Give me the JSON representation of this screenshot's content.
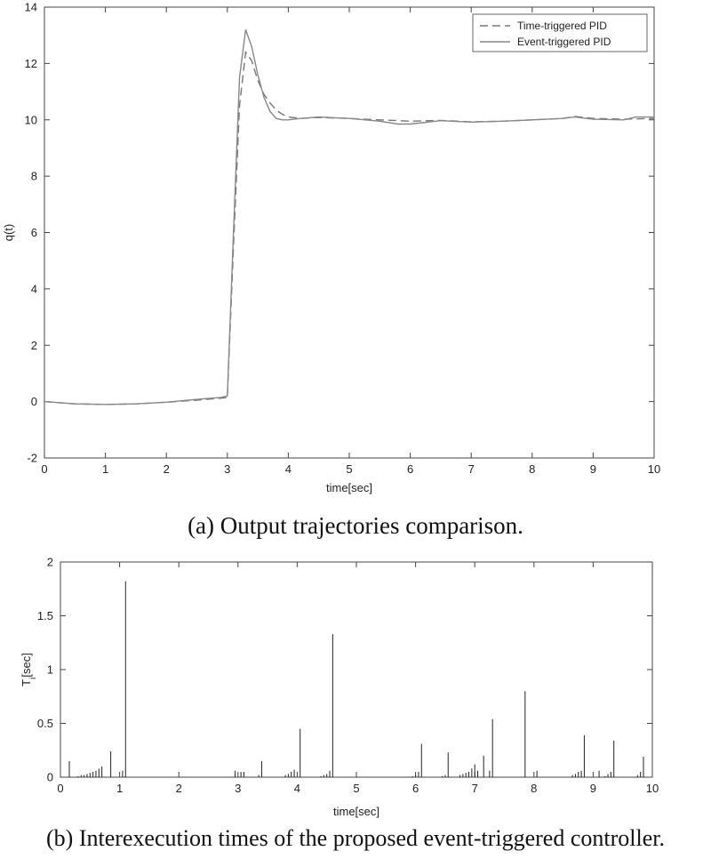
{
  "captions": {
    "a": "(a)  Output trajectories comparison.",
    "b": "(b)  Interexecution times of the proposed event-triggered controller."
  },
  "chart_data": [
    {
      "type": "line",
      "xlabel": "time[sec]",
      "ylabel": "q(t)",
      "xlim": [
        0,
        10
      ],
      "ylim": [
        -2,
        14
      ],
      "xticks": [
        0,
        1,
        2,
        3,
        4,
        5,
        6,
        7,
        8,
        9,
        10
      ],
      "yticks": [
        -2,
        0,
        2,
        4,
        6,
        8,
        10,
        12,
        14
      ],
      "grid": false,
      "legend_position": "top-right",
      "series": [
        {
          "name": "Time-triggered PID",
          "style": "dashed",
          "color": "#777777",
          "x": [
            0,
            0.5,
            1,
            1.5,
            2,
            2.5,
            2.9,
            3.0,
            3.1,
            3.2,
            3.3,
            3.4,
            3.5,
            3.6,
            3.7,
            3.8,
            3.9,
            4.0,
            4.2,
            4.5,
            5.0,
            5.5,
            6.0,
            6.5,
            7.0,
            7.5,
            8.0,
            8.5,
            8.7,
            9.0,
            9.5,
            10
          ],
          "y": [
            0,
            -0.08,
            -0.1,
            -0.08,
            -0.02,
            0.05,
            0.12,
            0.15,
            5.5,
            10.5,
            12.4,
            12.1,
            11.4,
            10.9,
            10.6,
            10.35,
            10.2,
            10.1,
            10.05,
            10.08,
            10.05,
            10.0,
            9.95,
            9.98,
            9.93,
            9.95,
            10.0,
            10.05,
            10.12,
            10.05,
            10.02,
            10.05
          ]
        },
        {
          "name": "Event-triggered PID",
          "style": "solid",
          "color": "#888888",
          "x": [
            0,
            0.5,
            1,
            1.5,
            2,
            2.5,
            2.9,
            3.0,
            3.1,
            3.2,
            3.3,
            3.4,
            3.5,
            3.6,
            3.7,
            3.8,
            3.9,
            4.0,
            4.2,
            4.5,
            5.0,
            5.5,
            5.8,
            6.0,
            6.5,
            7.0,
            7.5,
            8.0,
            8.5,
            8.7,
            9.0,
            9.5,
            9.7,
            10
          ],
          "y": [
            0,
            -0.08,
            -0.1,
            -0.08,
            -0.02,
            0.08,
            0.15,
            0.2,
            6.0,
            11.5,
            13.2,
            12.6,
            11.6,
            10.8,
            10.3,
            10.05,
            10.0,
            10.0,
            10.05,
            10.1,
            10.05,
            9.95,
            9.85,
            9.85,
            9.97,
            9.92,
            9.95,
            10.0,
            10.05,
            10.1,
            10.02,
            10.0,
            10.1,
            10.1
          ]
        }
      ]
    },
    {
      "type": "bar",
      "style": "stem",
      "xlabel": "time[sec]",
      "ylabel": "T_i[sec]",
      "xlim": [
        0,
        10
      ],
      "ylim": [
        0,
        2
      ],
      "xticks": [
        0,
        1,
        2,
        3,
        4,
        5,
        6,
        7,
        8,
        9,
        10
      ],
      "yticks": [
        0,
        0.5,
        1,
        1.5,
        2
      ],
      "grid": false,
      "x": [
        0.15,
        0.3,
        0.35,
        0.4,
        0.45,
        0.5,
        0.55,
        0.6,
        0.65,
        0.7,
        0.85,
        1.05,
        1.1,
        2.95,
        3.05,
        3.1,
        3.35,
        3.4,
        3.8,
        3.85,
        3.9,
        3.95,
        4.05,
        4.4,
        4.45,
        4.5,
        4.55,
        4.6,
        5.95,
        6.0,
        6.05,
        6.1,
        6.45,
        6.5,
        6.55,
        6.75,
        6.8,
        6.85,
        6.9,
        6.95,
        7.0,
        7.05,
        7.15,
        7.25,
        7.3,
        7.85,
        8.05,
        8.65,
        8.7,
        8.75,
        8.8,
        8.85,
        9.1,
        9.2,
        9.25,
        9.3,
        9.35,
        9.75,
        9.8,
        9.85
      ],
      "values": [
        0.15,
        0.01,
        0.02,
        0.02,
        0.03,
        0.04,
        0.05,
        0.06,
        0.08,
        0.1,
        0.24,
        0.06,
        1.82,
        0.06,
        0.05,
        0.05,
        0.02,
        0.15,
        0.02,
        0.03,
        0.05,
        0.07,
        0.45,
        0.01,
        0.02,
        0.03,
        0.06,
        1.33,
        0.01,
        0.02,
        0.05,
        0.31,
        0.01,
        0.02,
        0.23,
        0.02,
        0.03,
        0.04,
        0.05,
        0.08,
        0.12,
        0.06,
        0.2,
        0.06,
        0.54,
        0.8,
        0.06,
        0.02,
        0.03,
        0.05,
        0.06,
        0.39,
        0.06,
        0.01,
        0.03,
        0.05,
        0.34,
        0.02,
        0.05,
        0.19
      ]
    }
  ]
}
